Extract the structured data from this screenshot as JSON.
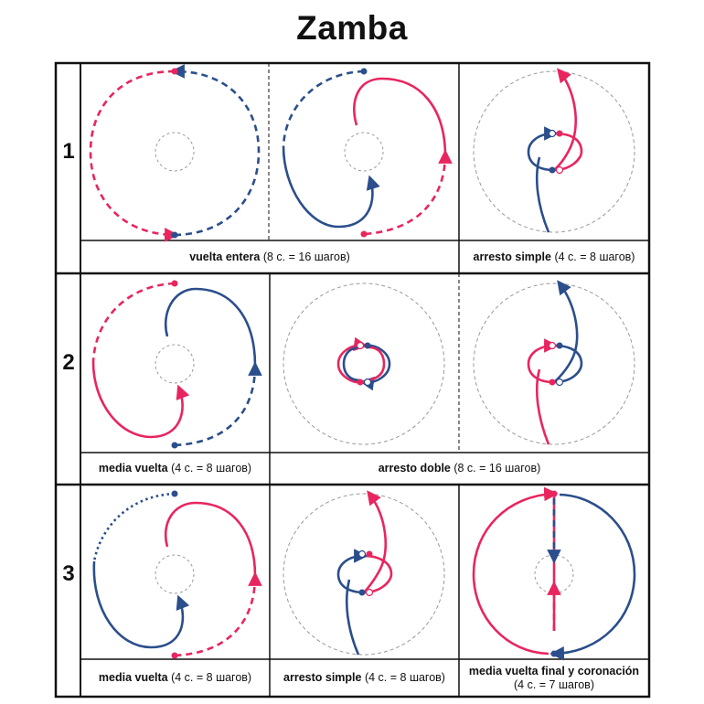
{
  "title": "Zamba",
  "colors": {
    "red": "#e8255f",
    "blue": "#2b4e8c"
  },
  "rows": [
    {
      "number": "1"
    },
    {
      "number": "2"
    },
    {
      "number": "3"
    }
  ],
  "captions": [
    {
      "name": "vuelta entera",
      "detail": " (8 с. = 16 шагов)"
    },
    {
      "name": "arresto simple",
      "detail": " (4 с. = 8 шагов)"
    },
    {
      "name": "media vuelta",
      "detail": " (4 с. = 8 шагов)"
    },
    {
      "name": "arresto doble",
      "detail": " (8 с. = 16 шагов)"
    },
    {
      "name": "media vuelta",
      "detail": " (4 с. = 8 шагов)"
    },
    {
      "name": "arresto simple",
      "detail": " (4 с. = 8 шагов)"
    },
    {
      "name": "media vuelta final y coronación",
      "detail": "(4 с. = 7 шагов)"
    }
  ]
}
